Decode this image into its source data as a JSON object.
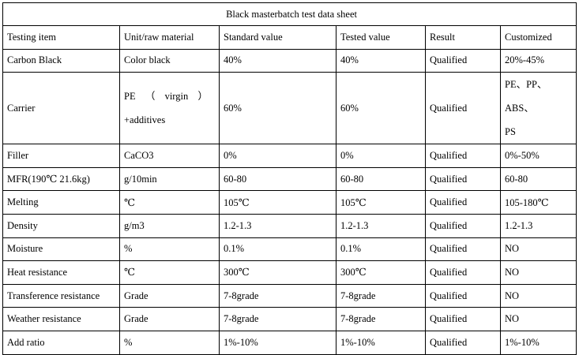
{
  "title": "Black masterbatch test data sheet",
  "headers": [
    "Testing item",
    "Unit/raw material",
    "Standard value",
    "Tested value",
    "Result",
    "Customized"
  ],
  "rows": [
    [
      "Carbon Black",
      "Color black",
      "40%",
      "40%",
      "Qualified",
      "20%-45%"
    ],
    [
      "Carrier",
      "PE （ virgin ） +additives",
      "60%",
      "60%",
      "Qualified",
      "PE、PP、ABS、PS"
    ],
    [
      "Filler",
      "CaCO3",
      "0%",
      "0%",
      "Qualified",
      "0%-50%"
    ],
    [
      "MFR(190℃ 21.6kg)",
      "g/10min",
      "60-80",
      "60-80",
      "Qualified",
      "60-80"
    ],
    [
      "Melting",
      "℃",
      "105℃",
      "105℃",
      "Qualified",
      "105-180℃"
    ],
    [
      "Density",
      "g/m3",
      "1.2-1.3",
      "1.2-1.3",
      "Qualified",
      "1.2-1.3"
    ],
    [
      "Moisture",
      "%",
      "0.1%",
      "0.1%",
      "Qualified",
      "NO"
    ],
    [
      "Heat resistance",
      "℃",
      "300℃",
      "300℃",
      "Qualified",
      "NO"
    ],
    [
      "Transference resistance",
      "Grade",
      "7-8grade",
      "7-8grade",
      "Qualified",
      "NO"
    ],
    [
      "Weather resistance",
      "Grade",
      "7-8grade",
      "7-8grade",
      "Qualified",
      "NO"
    ],
    [
      "Add ratio",
      "%",
      "1%-10%",
      "1%-10%",
      "Qualified",
      "1%-10%"
    ]
  ],
  "carrier_parts": {
    "pe": "PE",
    "open": "（",
    "virgin": "virgin",
    "close": "）",
    "additives": "+additives",
    "customized_line1": "PE、PP、ABS、",
    "customized_line2": "PS"
  }
}
